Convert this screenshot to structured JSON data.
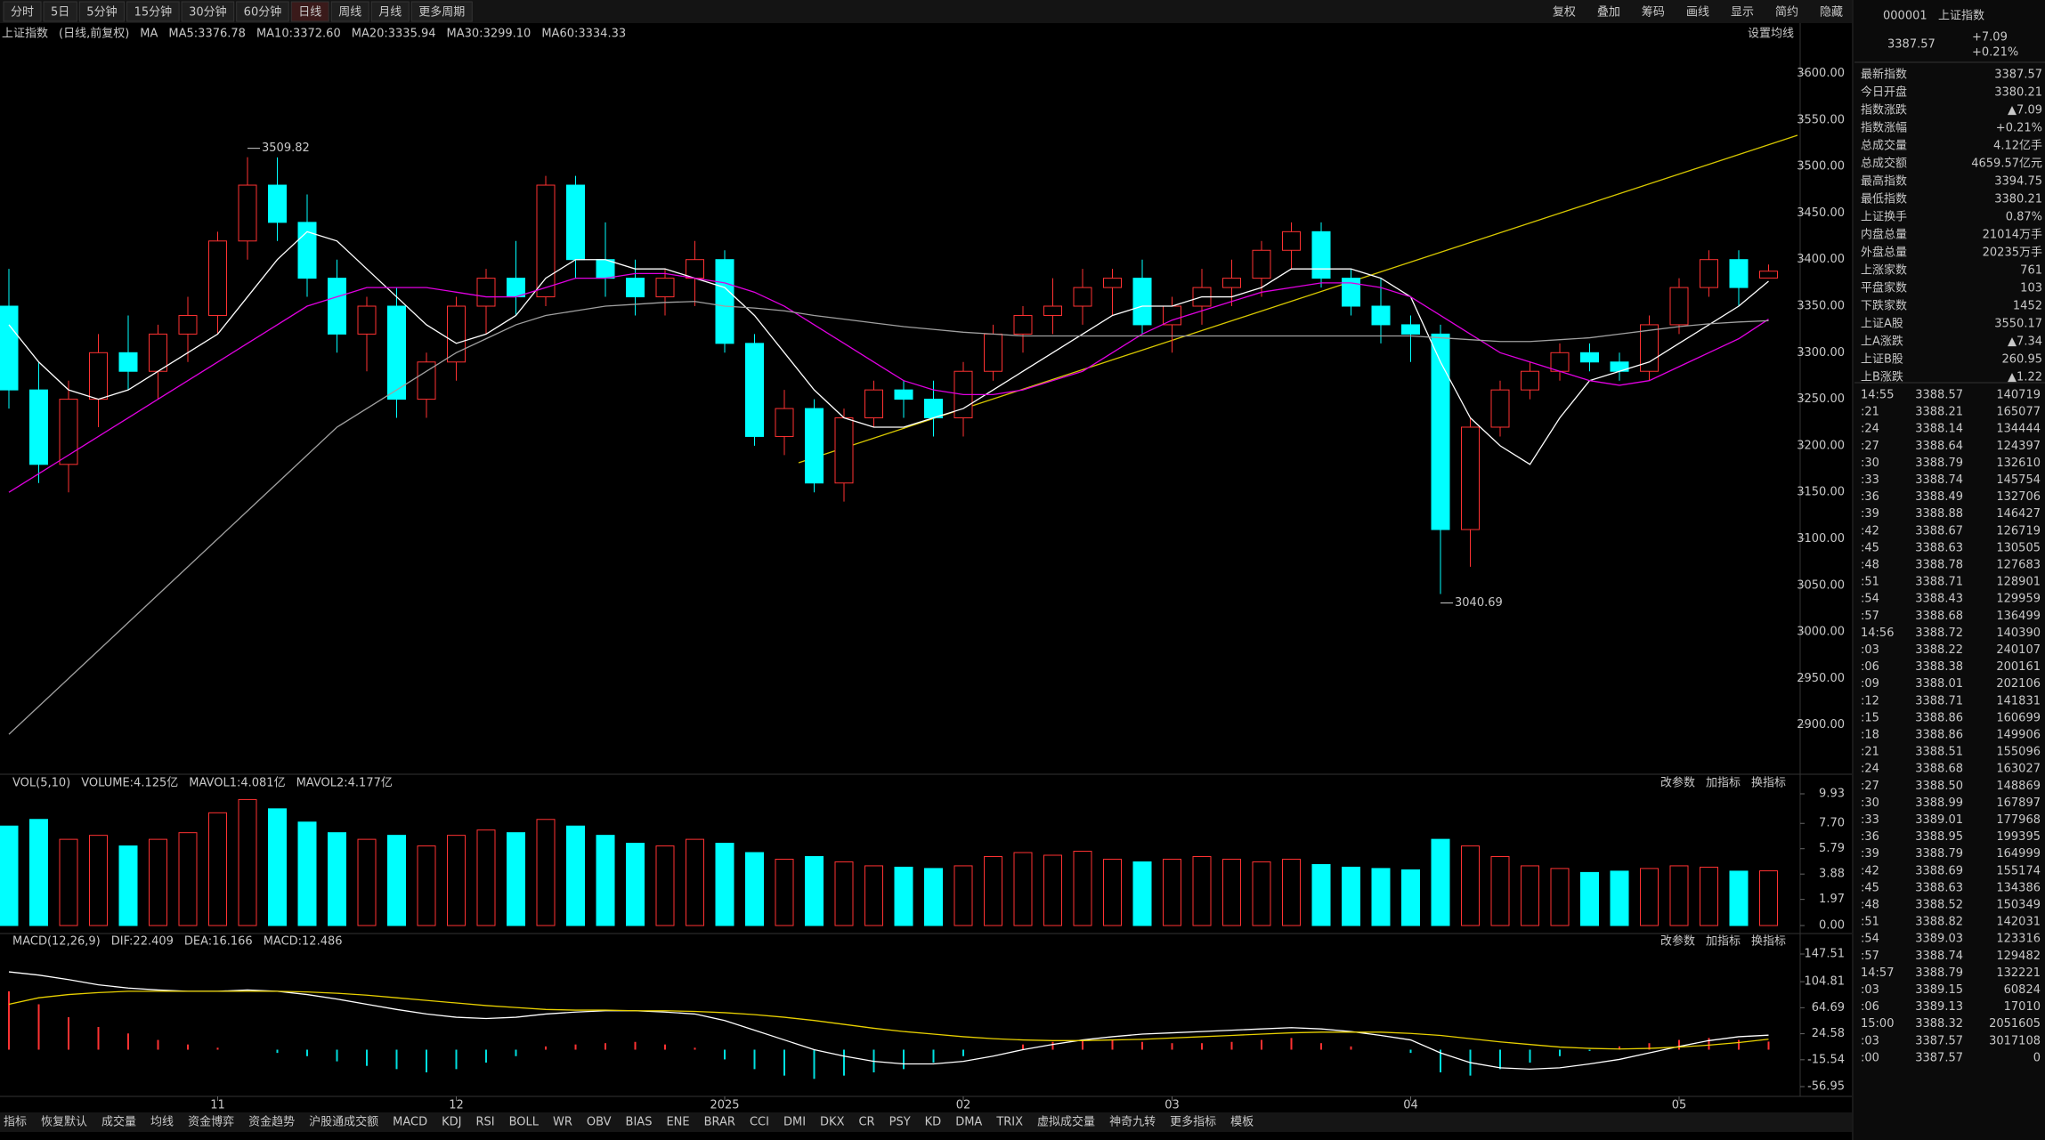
{
  "toolbar": {
    "periods": [
      "分时",
      "5日",
      "5分钟",
      "15分钟",
      "30分钟",
      "60分钟",
      "日线",
      "周线",
      "月线",
      "更多周期"
    ],
    "active_index": 6,
    "tools": [
      "复权",
      "叠加",
      "筹码",
      "画线",
      "显示",
      "简约",
      "隐藏"
    ]
  },
  "info_bar": {
    "name": "上证指数",
    "mode": "(日线,前复权)",
    "ma": "MA",
    "extra": [
      "MA10:3372.60",
      "MA30:3299.10"
    ],
    "extra_colors": [
      "#e8d000",
      "#00d000"
    ],
    "setting": "设置均线"
  },
  "chart_data": [
    {
      "type": "candlestick",
      "up_color": "#ff3232",
      "down_color": "#00ffff",
      "open": [
        3350,
        3260,
        3180,
        3250,
        3300,
        3280,
        3320,
        3340,
        3420,
        3480,
        3440,
        3380,
        3320,
        3350,
        3250,
        3290,
        3350,
        3380,
        3360,
        3480,
        3400,
        3380,
        3360,
        3380,
        3400,
        3310,
        3210,
        3240,
        3160,
        3230,
        3260,
        3250,
        3230,
        3280,
        3320,
        3340,
        3350,
        3370,
        3380,
        3330,
        3350,
        3370,
        3380,
        3410,
        3430,
        3380,
        3350,
        3330,
        3320,
        3110,
        3220,
        3260,
        3280,
        3300,
        3290,
        3280,
        3330,
        3370,
        3400,
        3380.21
      ],
      "high": [
        3390,
        3290,
        3270,
        3320,
        3340,
        3330,
        3360,
        3430,
        3510,
        3509.82,
        3470,
        3400,
        3360,
        3370,
        3300,
        3360,
        3390,
        3420,
        3490,
        3490,
        3440,
        3400,
        3390,
        3420,
        3410,
        3320,
        3260,
        3250,
        3240,
        3270,
        3270,
        3270,
        3290,
        3330,
        3350,
        3380,
        3390,
        3390,
        3400,
        3360,
        3390,
        3400,
        3420,
        3440,
        3440,
        3390,
        3380,
        3340,
        3330,
        3230,
        3270,
        3290,
        3310,
        3310,
        3300,
        3340,
        3380,
        3410,
        3410,
        3394.75
      ],
      "low": [
        3240,
        3160,
        3150,
        3220,
        3260,
        3250,
        3290,
        3320,
        3400,
        3420,
        3360,
        3300,
        3280,
        3230,
        3230,
        3270,
        3320,
        3340,
        3350,
        3380,
        3360,
        3340,
        3340,
        3350,
        3300,
        3200,
        3190,
        3150,
        3140,
        3220,
        3230,
        3210,
        3210,
        3270,
        3300,
        3320,
        3330,
        3340,
        3320,
        3300,
        3330,
        3350,
        3360,
        3390,
        3370,
        3340,
        3310,
        3290,
        3040.69,
        3070,
        3210,
        3250,
        3270,
        3280,
        3270,
        3270,
        3320,
        3360,
        3350,
        3380.21
      ],
      "close": [
        3260,
        3180,
        3250,
        3300,
        3280,
        3320,
        3340,
        3420,
        3480,
        3440,
        3380,
        3320,
        3350,
        3250,
        3290,
        3350,
        3380,
        3360,
        3480,
        3400,
        3380,
        3360,
        3380,
        3400,
        3310,
        3210,
        3240,
        3160,
        3230,
        3260,
        3250,
        3230,
        3280,
        3320,
        3340,
        3350,
        3370,
        3380,
        3330,
        3350,
        3370,
        3380,
        3410,
        3430,
        3380,
        3350,
        3330,
        3320,
        3110,
        3220,
        3260,
        3280,
        3300,
        3290,
        3280,
        3330,
        3370,
        3400,
        3370,
        3387.57
      ],
      "series": [
        {
          "name": "MA5:3376.78",
          "color": "#ffffff",
          "values": [
            3330,
            3290,
            3260,
            3250,
            3260,
            3280,
            3300,
            3320,
            3360,
            3400,
            3430,
            3420,
            3390,
            3360,
            3330,
            3310,
            3320,
            3340,
            3380,
            3400,
            3400,
            3390,
            3390,
            3380,
            3370,
            3340,
            3300,
            3260,
            3230,
            3220,
            3220,
            3230,
            3240,
            3260,
            3280,
            3300,
            3320,
            3340,
            3350,
            3350,
            3360,
            3360,
            3370,
            3390,
            3390,
            3390,
            3380,
            3360,
            3290,
            3230,
            3200,
            3180,
            3230,
            3270,
            3280,
            3290,
            3310,
            3330,
            3350,
            3376.78
          ]
        },
        {
          "name": "MA20:3335.94",
          "color": "#e000e0",
          "values": [
            3150,
            3170,
            3190,
            3210,
            3230,
            3250,
            3270,
            3290,
            3310,
            3330,
            3350,
            3360,
            3370,
            3370,
            3370,
            3365,
            3360,
            3360,
            3370,
            3380,
            3380,
            3385,
            3385,
            3380,
            3375,
            3365,
            3350,
            3330,
            3310,
            3290,
            3270,
            3260,
            3255,
            3255,
            3260,
            3270,
            3280,
            3300,
            3320,
            3335,
            3345,
            3355,
            3365,
            3370,
            3375,
            3375,
            3370,
            3360,
            3340,
            3320,
            3300,
            3290,
            3280,
            3270,
            3265,
            3270,
            3285,
            3300,
            3315,
            3335.94
          ]
        },
        {
          "name": "MA60:3334.33",
          "color": "#a0a0a0",
          "values": [
            2890,
            2920,
            2950,
            2980,
            3010,
            3040,
            3070,
            3100,
            3130,
            3160,
            3190,
            3220,
            3240,
            3260,
            3280,
            3300,
            3315,
            3330,
            3340,
            3345,
            3350,
            3352,
            3354,
            3355,
            3350,
            3348,
            3345,
            3340,
            3336,
            3332,
            3328,
            3325,
            3322,
            3320,
            3318,
            3318,
            3318,
            3318,
            3318,
            3318,
            3318,
            3318,
            3318,
            3318,
            3318,
            3318,
            3318,
            3318,
            3316,
            3314,
            3312,
            3312,
            3314,
            3316,
            3320,
            3324,
            3328,
            3331,
            3333,
            3334.33
          ]
        }
      ],
      "annotations": [
        "3509.82",
        "3040.69"
      ],
      "ylim": [
        2850,
        3633
      ],
      "yticks": [
        {
          "value": 2900,
          "label": "2900.00"
        },
        {
          "value": 2950,
          "label": "2950.00"
        },
        {
          "value": 3000,
          "label": "3000.00"
        },
        {
          "value": 3050,
          "label": "3050.00"
        },
        {
          "value": 3100,
          "label": "3100.00"
        },
        {
          "value": 3150,
          "label": "3150.00"
        },
        {
          "value": 3200,
          "label": "3200.00"
        },
        {
          "value": 3250,
          "label": "3250.00"
        },
        {
          "value": 3300,
          "label": "3300.00"
        },
        {
          "value": 3350,
          "label": "3350.00"
        },
        {
          "value": 3400,
          "label": "3400.00"
        },
        {
          "value": 3450,
          "label": "3450.00"
        },
        {
          "value": 3500,
          "label": "3500.00"
        },
        {
          "value": 3550,
          "label": "3550.00"
        },
        {
          "value": 3600,
          "label": "3600.00"
        }
      ]
    },
    {
      "type": "bar",
      "values": [
        7.5,
        8.0,
        6.5,
        6.8,
        6.0,
        6.5,
        7.0,
        8.5,
        9.5,
        8.8,
        7.8,
        7.0,
        6.5,
        6.8,
        6.0,
        6.8,
        7.2,
        7.0,
        8.0,
        7.5,
        6.8,
        6.2,
        6.0,
        6.5,
        6.2,
        5.5,
        5.0,
        5.2,
        4.8,
        4.5,
        4.4,
        4.3,
        4.5,
        5.2,
        5.5,
        5.3,
        5.6,
        5.0,
        4.8,
        5.0,
        5.2,
        5.0,
        4.8,
        5.0,
        4.6,
        4.4,
        4.3,
        4.2,
        6.5,
        6.0,
        5.2,
        4.5,
        4.3,
        4.0,
        4.1,
        4.3,
        4.5,
        4.4,
        4.1,
        4.125
      ],
      "ylim": [
        0,
        9.93
      ],
      "yticks": [
        {
          "value": 0,
          "label": "0.00"
        },
        1.97,
        3.88,
        5.79,
        {
          "value": 7.7,
          "label": "7.70"
        },
        9.93
      ]
    },
    {
      "type": "macd",
      "categories": [
        null,
        null,
        null,
        null,
        null,
        null,
        null,
        "11",
        null,
        null,
        null,
        null,
        null,
        null,
        null,
        "12",
        null,
        null,
        null,
        null,
        null,
        null,
        null,
        null,
        "2025",
        null,
        null,
        null,
        null,
        null,
        null,
        null,
        "02",
        null,
        null,
        null,
        null,
        null,
        null,
        "03",
        null,
        null,
        null,
        null,
        null,
        null,
        null,
        "04",
        null,
        null,
        null,
        null,
        null,
        null,
        null,
        null,
        "05",
        null,
        null,
        null
      ],
      "histogram": {
        "name": "MACD:12.486",
        "up_color": "#ff3232",
        "down_color": "#00e0e0",
        "values": [
          90,
          70,
          50,
          35,
          25,
          15,
          8,
          3,
          0,
          -5,
          -10,
          -18,
          -25,
          -30,
          -35,
          -30,
          -20,
          -10,
          5,
          8,
          10,
          12,
          8,
          3,
          -15,
          -30,
          -40,
          -45,
          -40,
          -35,
          -30,
          -20,
          -10,
          0,
          8,
          12,
          15,
          15,
          12,
          10,
          10,
          12,
          15,
          18,
          10,
          5,
          0,
          -5,
          -35,
          -40,
          -30,
          -20,
          -10,
          -2,
          5,
          10,
          15,
          18,
          15,
          12.486
        ]
      },
      "series": [
        {
          "name": "DIF:22.409",
          "color": "#ffffff",
          "values": [
            120,
            115,
            108,
            100,
            95,
            92,
            90,
            90,
            92,
            90,
            85,
            78,
            70,
            62,
            55,
            50,
            48,
            50,
            55,
            58,
            60,
            60,
            58,
            55,
            45,
            30,
            15,
            0,
            -10,
            -18,
            -22,
            -22,
            -18,
            -10,
            0,
            8,
            15,
            20,
            24,
            26,
            28,
            30,
            32,
            34,
            32,
            28,
            22,
            15,
            -5,
            -20,
            -28,
            -30,
            -28,
            -22,
            -15,
            -5,
            5,
            14,
            20,
            22.409
          ]
        },
        {
          "name": "DEA:16.166",
          "color": "#e8d000",
          "values": [
            70,
            80,
            85,
            88,
            90,
            90,
            90,
            90,
            90,
            90,
            89,
            87,
            84,
            80,
            76,
            72,
            68,
            65,
            62,
            61,
            61,
            60,
            60,
            59,
            57,
            54,
            50,
            45,
            39,
            33,
            28,
            24,
            20,
            17,
            15,
            14,
            14,
            15,
            16,
            18,
            20,
            22,
            24,
            26,
            27,
            27,
            27,
            25,
            22,
            17,
            12,
            8,
            4,
            2,
            1,
            2,
            4,
            7,
            11,
            16.166
          ]
        }
      ],
      "ylim": [
        -56.95,
        147.51
      ],
      "yticks": [
        -56.95,
        -15.54,
        24.58,
        64.69,
        104.81,
        147.51
      ]
    }
  ],
  "volume_bar": {
    "title": "VOL(5,10)",
    "items": [
      "VOLUME:4.125亿",
      "MAVOL1:4.081亿",
      "MAVOL2:4.177亿"
    ],
    "colors": [
      "#ffffff",
      "#e8d000",
      "#e000e0"
    ],
    "buttons": [
      "改参数",
      "加指标",
      "换指标"
    ]
  },
  "macd_bar": {
    "title": "MACD(12,26,9)",
    "buttons": [
      "改参数",
      "加指标",
      "换指标"
    ]
  },
  "tabs": [
    "指标",
    "恢复默认",
    "成交量",
    "均线",
    "资金博弈",
    "资金趋势",
    "沪股通成交额",
    "MACD",
    "KDJ",
    "RSI",
    "BOLL",
    "WR",
    "OBV",
    "BIAS",
    "ENE",
    "BRAR",
    "CCI",
    "DMI",
    "DKX",
    "CR",
    "PSY",
    "KD",
    "DMA",
    "TRIX",
    "虚拟成交量",
    "神奇九转",
    "更多指标",
    "模板"
  ],
  "quote": {
    "code": "000001",
    "name": "上证指数",
    "price": "3387.57",
    "change": "+7.09",
    "pct": "+0.21%",
    "rows": [
      {
        "label": "最新指数",
        "value": "3387.57",
        "color": "#ff4040"
      },
      {
        "label": "今日开盘",
        "value": "3380.21",
        "color": "#ff4040"
      },
      {
        "label": "指数涨跌",
        "value": "▲7.09",
        "color": "#ff4040"
      },
      {
        "label": "指数涨幅",
        "value": "+0.21%",
        "color": "#ff4040"
      },
      {
        "label": "总成交量",
        "value": "4.12亿手",
        "color": "#ffffff"
      },
      {
        "label": "总成交额",
        "value": "4659.57亿元",
        "color": "#00e0e0"
      },
      {
        "label": "最高指数",
        "value": "3394.75",
        "color": "#ff4040"
      },
      {
        "label": "最低指数",
        "value": "3380.21",
        "color": "#ff4040"
      },
      {
        "label": "上证换手",
        "value": "0.87%",
        "color": "#ffffff"
      },
      {
        "label": "内盘总量",
        "value": "21014万手",
        "color": "#00e0e0"
      },
      {
        "label": "外盘总量",
        "value": "20235万手",
        "color": "#ff4040"
      },
      {
        "label": "上涨家数",
        "value": "761",
        "color": "#ff4040"
      },
      {
        "label": "平盘家数",
        "value": "103",
        "color": "#ffffff"
      },
      {
        "label": "下跌家数",
        "value": "1452",
        "color": "#00e0e0"
      },
      {
        "label": "上证A股",
        "value": "3550.17",
        "color": "#ff4040"
      },
      {
        "label": "上A涨跌",
        "value": "▲7.34",
        "color": "#ff4040"
      },
      {
        "label": "上证B股",
        "value": "260.95",
        "color": "#ff4040"
      },
      {
        "label": "上B涨跌",
        "value": "▲1.22",
        "color": "#ff4040"
      }
    ]
  },
  "ticks": [
    [
      "14:55",
      "3388.57",
      "140719"
    ],
    [
      ":21",
      "3388.21",
      "165077"
    ],
    [
      ":24",
      "3388.14",
      "134444"
    ],
    [
      ":27",
      "3388.64",
      "124397"
    ],
    [
      ":30",
      "3388.79",
      "132610"
    ],
    [
      ":33",
      "3388.74",
      "145754"
    ],
    [
      ":36",
      "3388.49",
      "132706"
    ],
    [
      ":39",
      "3388.88",
      "146427"
    ],
    [
      ":42",
      "3388.67",
      "126719"
    ],
    [
      ":45",
      "3388.63",
      "130505"
    ],
    [
      ":48",
      "3388.78",
      "127683"
    ],
    [
      ":51",
      "3388.71",
      "128901"
    ],
    [
      ":54",
      "3388.43",
      "129959"
    ],
    [
      ":57",
      "3388.68",
      "136499"
    ],
    [
      "14:56",
      "3388.72",
      "140390"
    ],
    [
      ":03",
      "3388.22",
      "240107"
    ],
    [
      ":06",
      "3388.38",
      "200161"
    ],
    [
      ":09",
      "3388.01",
      "202106"
    ],
    [
      ":12",
      "3388.71",
      "141831"
    ],
    [
      ":15",
      "3388.86",
      "160699"
    ],
    [
      ":18",
      "3388.86",
      "149906"
    ],
    [
      ":21",
      "3388.51",
      "155096"
    ],
    [
      ":24",
      "3388.68",
      "163027"
    ],
    [
      ":27",
      "3388.50",
      "148869"
    ],
    [
      ":30",
      "3388.99",
      "167897"
    ],
    [
      ":33",
      "3389.01",
      "177968"
    ],
    [
      ":36",
      "3388.95",
      "199395"
    ],
    [
      ":39",
      "3388.79",
      "164999"
    ],
    [
      ":42",
      "3388.69",
      "155174"
    ],
    [
      ":45",
      "3388.63",
      "134386"
    ],
    [
      ":48",
      "3388.52",
      "150349"
    ],
    [
      ":51",
      "3388.82",
      "142031"
    ],
    [
      ":54",
      "3389.03",
      "123316"
    ],
    [
      ":57",
      "3388.74",
      "129482"
    ],
    [
      "14:57",
      "3388.79",
      "132221"
    ],
    [
      ":03",
      "3389.15",
      "60824"
    ],
    [
      ":06",
      "3389.13",
      "17010"
    ],
    [
      "15:00",
      "3388.32",
      "2051605"
    ],
    [
      ":03",
      "3387.57",
      "3017108"
    ],
    [
      ":00",
      "3387.57",
      "0"
    ]
  ]
}
